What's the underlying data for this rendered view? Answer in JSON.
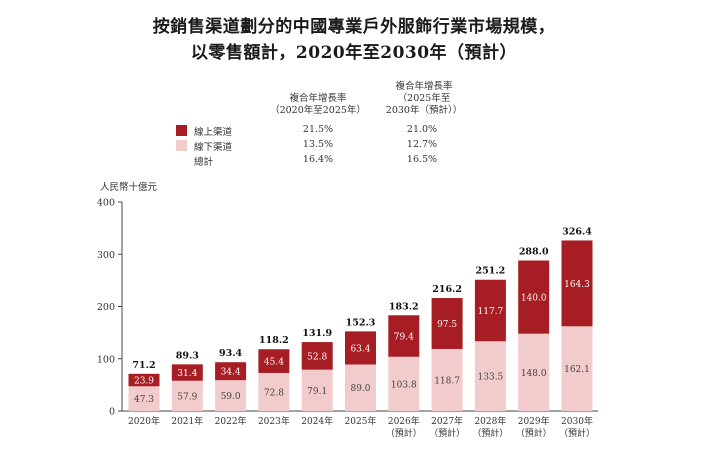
{
  "title_line1": "按銷售渠道劃分的中國專業戶外服飾行業市場規模，",
  "title_line2": "以零售額計，2020年至2030年（預計）",
  "cagr_header_1": [
    "複合年增長率",
    "（2020年至2025年）"
  ],
  "cagr_header_2": [
    "複合年增長率",
    "（2025年至",
    "2030年（預計））"
  ],
  "legend": [
    {
      "label": "線上渠道",
      "color": "#a61d24",
      "cagr_2020_2025": "21.5%",
      "cagr_2025_2030": "21.0%"
    },
    {
      "label": "線下渠道",
      "color": "#f2cccc",
      "cagr_2020_2025": "13.5%",
      "cagr_2025_2030": "12.7%"
    },
    {
      "label": "總計",
      "color": "",
      "cagr_2020_2025": "16.4%",
      "cagr_2025_2030": "16.5%"
    }
  ],
  "chart_data": {
    "type": "bar",
    "stacked": true,
    "ylabel": "人民幣十億元",
    "ylim": [
      0,
      400
    ],
    "yticks": [
      0,
      100,
      200,
      300,
      400
    ],
    "categories": [
      [
        "2020年"
      ],
      [
        "2021年"
      ],
      [
        "2022年"
      ],
      [
        "2023年"
      ],
      [
        "2024年"
      ],
      [
        "2025年"
      ],
      [
        "2026年",
        "（預計）"
      ],
      [
        "2027年",
        "（預計）"
      ],
      [
        "2028年",
        "（預計）"
      ],
      [
        "2029年",
        "（預計）"
      ],
      [
        "2030年",
        "（預計）"
      ]
    ],
    "series": [
      {
        "name": "線下渠道",
        "color": "#f2cccc",
        "label_color": "#444444",
        "values": [
          47.3,
          57.9,
          59.0,
          72.8,
          79.1,
          89.0,
          103.8,
          118.7,
          133.5,
          148.0,
          162.1
        ]
      },
      {
        "name": "線上渠道",
        "color": "#a61d24",
        "label_color": "#ffffff",
        "values": [
          23.9,
          31.4,
          34.4,
          45.4,
          52.8,
          63.4,
          79.4,
          97.5,
          117.7,
          140.0,
          164.3
        ]
      }
    ],
    "totals": [
      71.2,
      89.3,
      93.4,
      118.2,
      131.9,
      152.3,
      183.2,
      216.2,
      251.2,
      288.0,
      326.4
    ],
    "grid": false
  }
}
